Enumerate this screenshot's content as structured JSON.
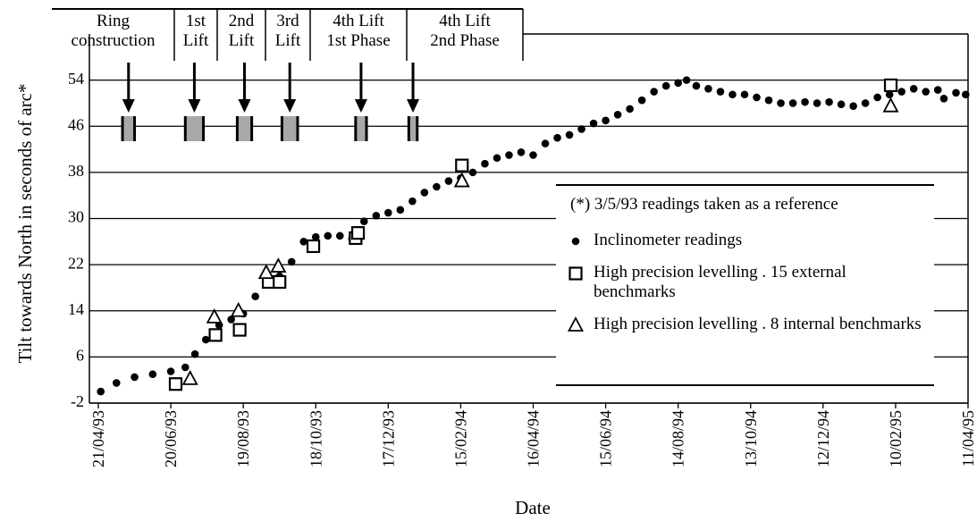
{
  "chart_data": {
    "type": "scatter",
    "xlabel": "Date",
    "ylabel": "Tilt towards North in seconds of arc*",
    "annotation": "(*) 3/5/93 readings taken as a reference",
    "xlim": [
      "1993-04-21",
      "1995-04-11"
    ],
    "ylim": [
      -2,
      62
    ],
    "yticks": [
      -2,
      6,
      14,
      22,
      30,
      38,
      46,
      54
    ],
    "xticks": [
      {
        "value": "1993-04-21",
        "label": "21/04/93"
      },
      {
        "value": "1993-06-20",
        "label": "20/06/93"
      },
      {
        "value": "1993-08-19",
        "label": "19/08/93"
      },
      {
        "value": "1993-10-18",
        "label": "18/10/93"
      },
      {
        "value": "1993-12-17",
        "label": "17/12/93"
      },
      {
        "value": "1994-02-15",
        "label": "15/02/94"
      },
      {
        "value": "1994-04-16",
        "label": "16/04/94"
      },
      {
        "value": "1994-06-15",
        "label": "15/06/94"
      },
      {
        "value": "1994-08-14",
        "label": "14/08/94"
      },
      {
        "value": "1994-10-13",
        "label": "13/10/94"
      },
      {
        "value": "1994-12-12",
        "label": "12/12/94"
      },
      {
        "value": "1995-02-10",
        "label": "10/02/95"
      },
      {
        "value": "1995-04-11",
        "label": "11/04/95"
      }
    ],
    "grid": true,
    "phases": [
      {
        "label": [
          "Ring",
          "construction"
        ],
        "start": "1993-05-11",
        "end": "1993-05-21"
      },
      {
        "label": [
          "1st",
          "Lift"
        ],
        "start": "1993-07-02",
        "end": "1993-07-17"
      },
      {
        "label": [
          "2nd",
          "Lift"
        ],
        "start": "1993-08-14",
        "end": "1993-08-26"
      },
      {
        "label": [
          "3rd",
          "Lift"
        ],
        "start": "1993-09-20",
        "end": "1993-10-03"
      },
      {
        "label": [
          "4th Lift",
          "1st Phase"
        ],
        "start": "1993-11-20",
        "end": "1993-11-29"
      },
      {
        "label": [
          "4th Lift",
          "2nd Phase"
        ],
        "start": "1994-01-03",
        "end": "1994-01-10"
      }
    ],
    "series": [
      {
        "name": "Inclinometer readings",
        "marker": "circle",
        "color": "#000000",
        "x": [
          "1993-04-23",
          "1993-05-06",
          "1993-05-21",
          "1993-06-05",
          "1993-06-20",
          "1993-07-02",
          "1993-07-10",
          "1993-07-19",
          "1993-07-30",
          "1993-08-09",
          "1993-08-19",
          "1993-08-29",
          "1993-09-08",
          "1993-09-18",
          "1993-09-28",
          "1993-10-08",
          "1993-10-18",
          "1993-10-28",
          "1993-11-07",
          "1993-11-17",
          "1993-11-27",
          "1993-12-07",
          "1993-12-17",
          "1993-12-27",
          "1994-01-06",
          "1994-01-16",
          "1994-01-26",
          "1994-02-05",
          "1994-02-15",
          "1994-02-25",
          "1994-03-07",
          "1994-03-17",
          "1994-03-27",
          "1994-04-06",
          "1994-04-16",
          "1994-04-26",
          "1994-05-06",
          "1994-05-16",
          "1994-05-26",
          "1994-06-05",
          "1994-06-15",
          "1994-06-25",
          "1994-07-05",
          "1994-07-15",
          "1994-07-25",
          "1994-08-04",
          "1994-08-14",
          "1994-08-21",
          "1994-08-29",
          "1994-09-08",
          "1994-09-18",
          "1994-09-28",
          "1994-10-08",
          "1994-10-18",
          "1994-10-28",
          "1994-11-07",
          "1994-11-17",
          "1994-11-27",
          "1994-12-07",
          "1994-12-17",
          "1994-12-27",
          "1995-01-06",
          "1995-01-16",
          "1995-01-26",
          "1995-02-05",
          "1995-02-15",
          "1995-02-25",
          "1995-03-07",
          "1995-03-17",
          "1995-03-22",
          "1995-04-01",
          "1995-04-09"
        ],
        "values": [
          0.0,
          1.5,
          2.5,
          3.0,
          3.5,
          4.2,
          6.5,
          9.0,
          11.5,
          12.5,
          13.5,
          16.5,
          19.0,
          20.0,
          22.5,
          26.0,
          26.8,
          27.0,
          27.0,
          26.5,
          29.5,
          30.5,
          31.0,
          31.5,
          33.0,
          34.5,
          35.5,
          36.5,
          37.0,
          38.0,
          39.5,
          40.5,
          41.0,
          41.5,
          41.0,
          43.0,
          44.0,
          44.5,
          45.5,
          46.5,
          47.0,
          48.0,
          49.0,
          50.5,
          52.0,
          53.0,
          53.5,
          54.0,
          53.0,
          52.5,
          52.0,
          51.5,
          51.5,
          51.0,
          50.5,
          50.0,
          50.0,
          50.2,
          50.0,
          50.2,
          49.8,
          49.5,
          50.0,
          51.0,
          51.5,
          52.0,
          52.5,
          52.0,
          52.3,
          50.8,
          51.8,
          51.5
        ]
      },
      {
        "name": "High precision levelling . 15 external benchmarks",
        "marker": "square",
        "color": "#000000",
        "x": [
          "1993-06-24",
          "1993-07-27",
          "1993-08-16",
          "1993-09-09",
          "1993-09-18",
          "1993-10-16",
          "1993-11-20",
          "1993-11-22",
          "1994-02-16",
          "1995-02-06"
        ],
        "values": [
          1.3,
          9.8,
          10.7,
          19.0,
          19.0,
          25.2,
          26.6,
          27.5,
          39.2,
          53.1
        ]
      },
      {
        "name": "High precision levelling . 8 internal benchmarks",
        "marker": "triangle",
        "color": "#000000",
        "x": [
          "1993-07-06",
          "1993-07-26",
          "1993-08-15",
          "1993-09-07",
          "1993-09-17",
          "1994-02-16",
          "1995-02-06"
        ],
        "values": [
          2.2,
          12.9,
          14.0,
          20.6,
          21.7,
          36.5,
          49.5
        ]
      }
    ]
  }
}
